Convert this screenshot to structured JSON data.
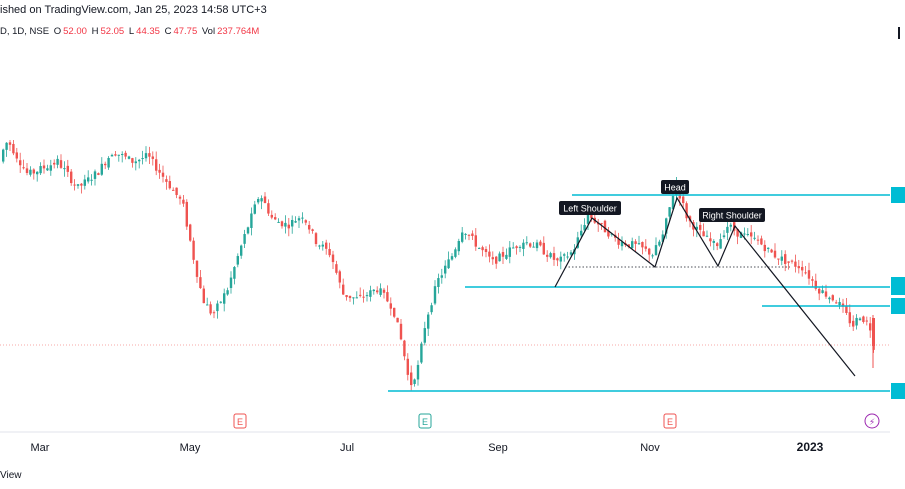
{
  "header": {
    "published_line": "ished on TradingView.com, Jan 25, 2023 14:58 UTC+3",
    "symbol_line": "D, 1D, NSE",
    "ohlc": {
      "o_label": "O",
      "o_value": "52.00",
      "h_label": "H",
      "h_value": "52.05",
      "l_label": "L",
      "l_value": "44.35",
      "c_label": "C",
      "c_value": "47.75",
      "vol_label": "Vol",
      "vol_value": "237.764M"
    }
  },
  "footer": {
    "brand_text": "View"
  },
  "chart_data": {
    "type": "candlestick",
    "title": "",
    "xlabel": "",
    "ylabel": "",
    "x_tick_labels": [
      "Mar",
      "May",
      "Jul",
      "Sep",
      "Nov",
      "2023"
    ],
    "annotations": [
      "Left Shoulder",
      "Head",
      "Right Shoulder"
    ],
    "earnings_markers": [
      "E",
      "E",
      "E"
    ],
    "dividend_marker": "⚡",
    "colors": {
      "up": "#26a69a",
      "down": "#ef5350",
      "level_line": "#00bcd4",
      "pattern_line": "#131722",
      "label_bg": "#131722",
      "label_text": "#ffffff",
      "last_price_line": "#ef5350",
      "grid": "none"
    },
    "grid": false,
    "legend": "none",
    "price_levels_relative": [
      {
        "name": "resistance",
        "from_month": "Sep",
        "to_month": "end",
        "level": 0.81
      },
      {
        "name": "neckline-support",
        "from_month": "Aug",
        "to_month": "end",
        "level": 0.555
      },
      {
        "name": "support-2",
        "from_month": "Dec",
        "to_month": "end",
        "level": 0.49
      },
      {
        "name": "low-support",
        "from_month": "Jul",
        "to_month": "end",
        "level": 0.06
      }
    ]
  }
}
